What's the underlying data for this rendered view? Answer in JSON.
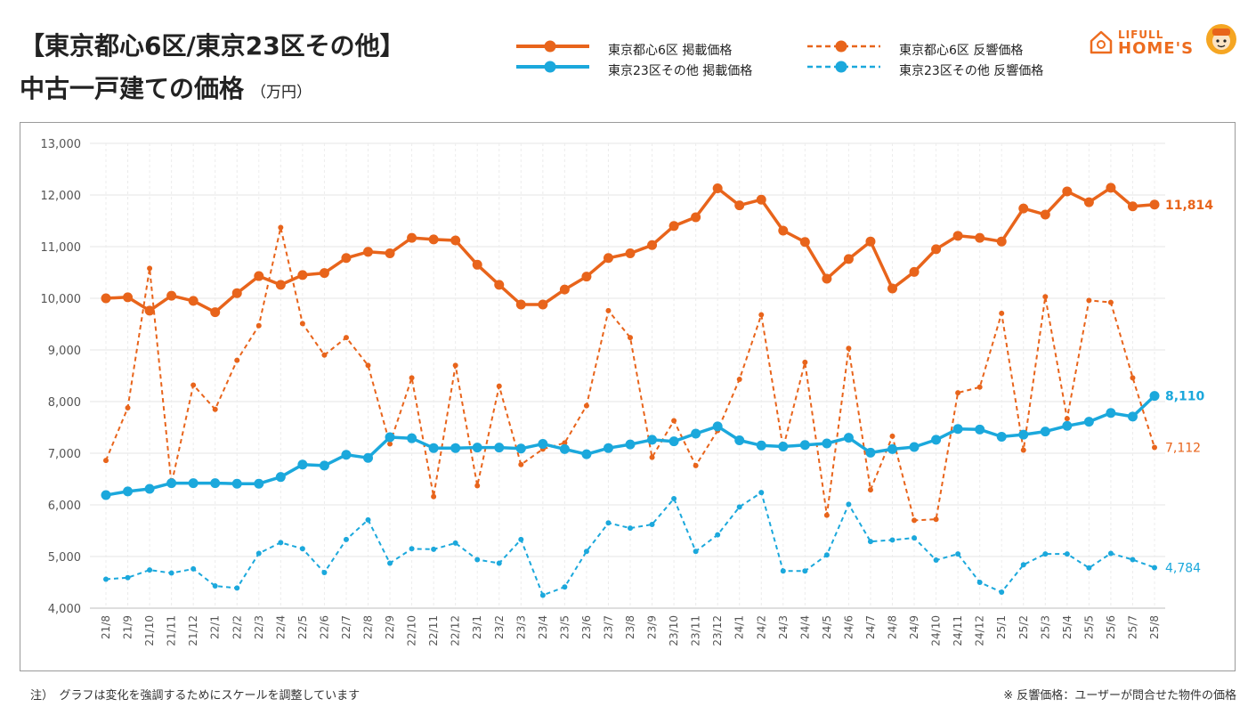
{
  "header": {
    "title_line1": "【東京都心6区/東京23区その他】",
    "title_line2": "中古一戸建ての価格",
    "unit": "（万円）"
  },
  "brand": {
    "top": "LIFULL",
    "bottom": "HOME'S",
    "color": "#ED6C1F"
  },
  "legend": [
    {
      "label": "東京都心6区 掲載価格",
      "color": "#E8641B",
      "style": "solid"
    },
    {
      "label": "東京23区その他 掲載価格",
      "color": "#1BA8DC",
      "style": "solid"
    },
    {
      "label": "東京都心6区 反響価格",
      "color": "#E8641B",
      "style": "dashed"
    },
    {
      "label": "東京23区その他 反響価格",
      "color": "#1BA8DC",
      "style": "dashed"
    }
  ],
  "notes": {
    "left": "注）　グラフは変化を強調するためにスケールを調整しています",
    "right": "※ 反響価格：ユーザーが問合せた物件の価格"
  },
  "chart_data": {
    "type": "line",
    "title": "中古一戸建ての価格",
    "ylabel": "万円",
    "ylim": [
      4000,
      13000
    ],
    "yticks": [
      "4,000",
      "5,000",
      "6,000",
      "7,000",
      "8,000",
      "9,000",
      "10,000",
      "11,000",
      "12,000",
      "13,000"
    ],
    "grid": true,
    "categories": [
      "21/8",
      "21/9",
      "21/10",
      "21/11",
      "21/12",
      "22/1",
      "22/2",
      "22/3",
      "22/4",
      "22/5",
      "22/6",
      "22/7",
      "22/8",
      "22/9",
      "22/10",
      "22/11",
      "22/12",
      "23/1",
      "23/2",
      "23/3",
      "23/4",
      "23/5",
      "23/6",
      "23/7",
      "23/8",
      "23/9",
      "23/10",
      "23/11",
      "23/12",
      "24/1",
      "24/2",
      "24/3",
      "24/4",
      "24/5",
      "24/6",
      "24/7",
      "24/8",
      "24/9",
      "24/10",
      "24/11",
      "24/12",
      "25/1",
      "25/2",
      "25/3",
      "25/4",
      "25/5",
      "25/6",
      "25/7",
      "25/8"
    ],
    "series": [
      {
        "name": "東京都心6区 掲載価格",
        "color": "#E8641B",
        "style": "solid",
        "end_label": "11,814",
        "values": [
          10000,
          10020,
          9760,
          10050,
          9950,
          9730,
          10100,
          10430,
          10260,
          10450,
          10490,
          10780,
          10900,
          10870,
          11170,
          11140,
          11120,
          10650,
          10260,
          9880,
          9880,
          10170,
          10420,
          10780,
          10870,
          11030,
          11400,
          11570,
          12130,
          11800,
          11910,
          11310,
          11090,
          10380,
          10760,
          11100,
          10190,
          10510,
          10950,
          11210,
          11170,
          11100,
          11740,
          11620,
          12070,
          11860,
          12140,
          11780,
          11814
        ]
      },
      {
        "name": "東京23区その他 掲載価格",
        "color": "#1BA8DC",
        "style": "solid",
        "end_label": "8,110",
        "values": [
          6190,
          6260,
          6310,
          6420,
          6420,
          6420,
          6410,
          6410,
          6540,
          6780,
          6760,
          6970,
          6910,
          7310,
          7290,
          7100,
          7100,
          7110,
          7110,
          7090,
          7180,
          7080,
          6980,
          7100,
          7170,
          7260,
          7230,
          7380,
          7520,
          7250,
          7150,
          7130,
          7160,
          7190,
          7300,
          7010,
          7080,
          7120,
          7260,
          7470,
          7460,
          7320,
          7360,
          7420,
          7530,
          7610,
          7780,
          7710,
          8110
        ]
      },
      {
        "name": "東京都心6区 反響価格",
        "color": "#E8641B",
        "style": "dashed",
        "end_label": "7,112",
        "values": [
          6860,
          7880,
          10580,
          6400,
          8320,
          7850,
          8800,
          9470,
          11370,
          9510,
          8900,
          9240,
          8700,
          7180,
          8460,
          6160,
          8700,
          6370,
          8300,
          6780,
          7080,
          7200,
          7920,
          9760,
          9240,
          6920,
          7630,
          6760,
          7440,
          8430,
          9680,
          7100,
          8760,
          5800,
          9030,
          6290,
          7330,
          5700,
          5720,
          8170,
          8280,
          9710,
          7060,
          10030,
          7670,
          9960,
          9920,
          8460,
          7112
        ]
      },
      {
        "name": "東京23区その他 反響価格",
        "color": "#1BA8DC",
        "style": "dashed",
        "end_label": "4,784",
        "values": [
          4560,
          4590,
          4740,
          4680,
          4760,
          4430,
          4390,
          5060,
          5270,
          5150,
          4690,
          5330,
          5710,
          4870,
          5150,
          5140,
          5260,
          4940,
          4870,
          5330,
          4250,
          4410,
          5100,
          5650,
          5550,
          5620,
          6120,
          5100,
          5420,
          5960,
          6240,
          4720,
          4720,
          5030,
          6010,
          5290,
          5320,
          5360,
          4930,
          5050,
          4500,
          4310,
          4840,
          5050,
          5050,
          4780,
          5060,
          4940,
          4784
        ]
      }
    ]
  }
}
